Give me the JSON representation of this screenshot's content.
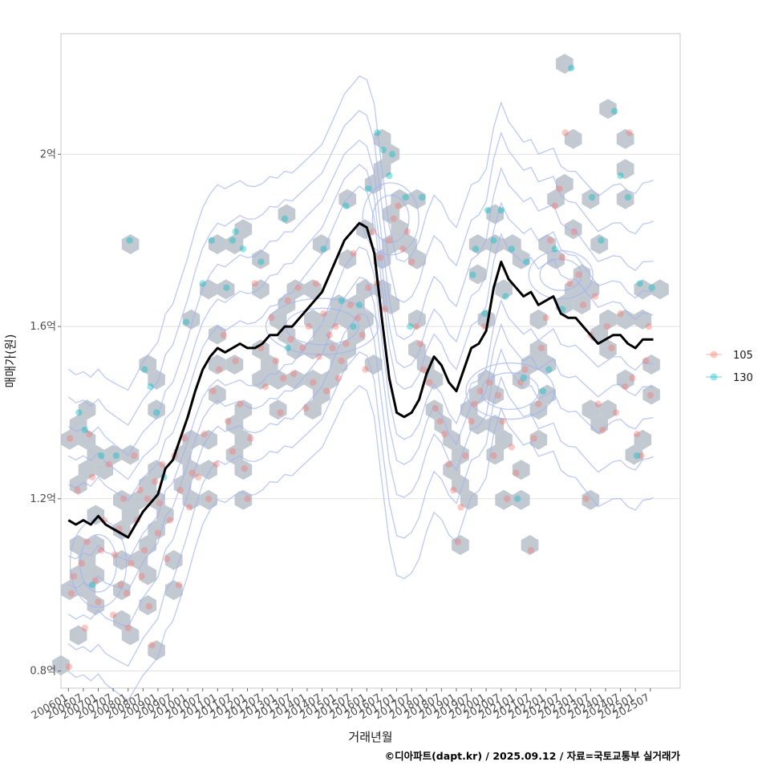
{
  "chart_data": {
    "type": "scatter",
    "title": "",
    "xlabel": "거래년월",
    "ylabel": "매매가(원)",
    "caption": "©디아파트(dapt.kr) / 2025.09.12 / 자료=국토교통부 실거래가",
    "xlim": [
      2005.75,
      2026.5
    ],
    "ylim": [
      0.76,
      2.28
    ],
    "y_ticks": [
      {
        "value": 0.8,
        "label": "0.8억"
      },
      {
        "value": 1.2,
        "label": "1.2억"
      },
      {
        "value": 1.6,
        "label": "1.6억"
      },
      {
        "value": 2.0,
        "label": "2억"
      }
    ],
    "x_tick_labels": [
      "200601",
      "200607",
      "200701",
      "200707",
      "200801",
      "200807",
      "200901",
      "200907",
      "201001",
      "201007",
      "201101",
      "201107",
      "201201",
      "201207",
      "201301",
      "201307",
      "201401",
      "201407",
      "201501",
      "201507",
      "201601",
      "201607",
      "201701",
      "201707",
      "201801",
      "201807",
      "201901",
      "201907",
      "202001",
      "202007",
      "202101",
      "202107",
      "202201",
      "202207",
      "202301",
      "202307",
      "202401",
      "202407",
      "202501",
      "202507"
    ],
    "x_tick_values": [
      2006.0,
      2006.5,
      2007.0,
      2007.5,
      2008.0,
      2008.5,
      2009.0,
      2009.5,
      2010.0,
      2010.5,
      2011.0,
      2011.5,
      2012.0,
      2012.5,
      2013.0,
      2013.5,
      2014.0,
      2014.5,
      2015.0,
      2015.5,
      2016.0,
      2016.5,
      2017.0,
      2017.5,
      2018.0,
      2018.5,
      2019.0,
      2019.5,
      2020.0,
      2020.5,
      2021.0,
      2021.5,
      2022.0,
      2022.5,
      2023.0,
      2023.5,
      2024.0,
      2024.5,
      2025.0,
      2025.5
    ],
    "legend": {
      "position": "right",
      "entries": [
        {
          "label": "105",
          "color": "#f8766d"
        },
        {
          "label": "130",
          "color": "#00bfc4"
        }
      ]
    },
    "colors": {
      "105": "#f8766d",
      "130": "#00bfc4",
      "trend": "#000000",
      "hex": "#b4bbc5",
      "contour": "#9fb2ee",
      "grid": "#e2e2e2",
      "panel_border": "#c8c8c8"
    },
    "series": [
      {
        "name": "105",
        "points": [
          [
            2006.02,
            0.81
          ],
          [
            2006.1,
            0.98
          ],
          [
            2006.18,
            1.02
          ],
          [
            2006.05,
            1.34
          ],
          [
            2006.3,
            1.22
          ],
          [
            2006.45,
            1.05
          ],
          [
            2006.55,
            0.9
          ],
          [
            2006.62,
            1.1
          ],
          [
            2006.7,
            1.35
          ],
          [
            2006.8,
            1.25
          ],
          [
            2006.9,
            1.01
          ],
          [
            2007.0,
            0.96
          ],
          [
            2007.1,
            1.08
          ],
          [
            2007.2,
            1.15
          ],
          [
            2007.35,
            1.28
          ],
          [
            2007.5,
            0.93
          ],
          [
            2007.55,
            1.07
          ],
          [
            2007.7,
            1.13
          ],
          [
            2007.75,
            1.0
          ],
          [
            2007.85,
            1.2
          ],
          [
            2007.95,
            0.98
          ],
          [
            2008.0,
            0.9
          ],
          [
            2008.1,
            1.05
          ],
          [
            2008.2,
            1.3
          ],
          [
            2008.3,
            1.15
          ],
          [
            2008.4,
            1.22
          ],
          [
            2008.45,
            1.02
          ],
          [
            2008.55,
            1.08
          ],
          [
            2008.65,
            1.2
          ],
          [
            2008.7,
            0.95
          ],
          [
            2008.8,
            0.86
          ],
          [
            2008.9,
            1.24
          ],
          [
            2009.0,
            1.12
          ],
          [
            2009.05,
            1.19
          ],
          [
            2009.15,
            1.28
          ],
          [
            2009.3,
            1.06
          ],
          [
            2009.4,
            1.15
          ],
          [
            2009.55,
            1.3
          ],
          [
            2009.7,
            1.0
          ],
          [
            2009.75,
            1.22
          ],
          [
            2009.9,
            1.34
          ],
          [
            2010.05,
            1.18
          ],
          [
            2010.15,
            1.26
          ],
          [
            2010.35,
            1.25
          ],
          [
            2010.55,
            1.35
          ],
          [
            2010.7,
            1.2
          ],
          [
            2010.85,
            1.45
          ],
          [
            2010.95,
            1.28
          ],
          [
            2011.05,
            1.5
          ],
          [
            2011.2,
            1.58
          ],
          [
            2011.35,
            1.38
          ],
          [
            2011.5,
            1.31
          ],
          [
            2011.6,
            1.52
          ],
          [
            2011.75,
            1.42
          ],
          [
            2011.9,
            1.27
          ],
          [
            2012.0,
            1.2
          ],
          [
            2012.1,
            1.34
          ],
          [
            2012.25,
            1.7
          ],
          [
            2012.45,
            1.55
          ],
          [
            2012.6,
            1.46
          ],
          [
            2012.8,
            1.62
          ],
          [
            2012.95,
            1.52
          ],
          [
            2013.1,
            1.4
          ],
          [
            2013.2,
            1.48
          ],
          [
            2013.35,
            1.66
          ],
          [
            2013.45,
            1.57
          ],
          [
            2013.55,
            1.49
          ],
          [
            2013.7,
            1.69
          ],
          [
            2013.85,
            1.55
          ],
          [
            2013.95,
            1.41
          ],
          [
            2014.05,
            1.6
          ],
          [
            2014.2,
            1.47
          ],
          [
            2014.3,
            1.7
          ],
          [
            2014.4,
            1.53
          ],
          [
            2014.55,
            1.63
          ],
          [
            2014.65,
            1.45
          ],
          [
            2014.75,
            1.58
          ],
          [
            2014.85,
            1.55
          ],
          [
            2014.95,
            1.6
          ],
          [
            2015.05,
            1.48
          ],
          [
            2015.15,
            1.52
          ],
          [
            2015.3,
            1.56
          ],
          [
            2015.45,
            1.65
          ],
          [
            2015.55,
            1.77
          ],
          [
            2015.7,
            1.62
          ],
          [
            2015.85,
            1.58
          ],
          [
            2015.95,
            1.5
          ],
          [
            2016.05,
            1.69
          ],
          [
            2016.2,
            1.82
          ],
          [
            2016.35,
            1.7
          ],
          [
            2016.45,
            1.76
          ],
          [
            2016.6,
            1.64
          ],
          [
            2016.75,
            1.8
          ],
          [
            2016.9,
            1.85
          ],
          [
            2017.05,
            1.88
          ],
          [
            2017.2,
            1.78
          ],
          [
            2017.35,
            1.82
          ],
          [
            2017.5,
            1.75
          ],
          [
            2017.65,
            1.6
          ],
          [
            2017.8,
            1.56
          ],
          [
            2017.9,
            1.5
          ],
          [
            2018.1,
            1.47
          ],
          [
            2018.3,
            1.41
          ],
          [
            2018.45,
            1.38
          ],
          [
            2018.6,
            1.35
          ],
          [
            2018.75,
            1.28
          ],
          [
            2018.9,
            1.22
          ],
          [
            2019.05,
            1.1
          ],
          [
            2019.15,
            1.18
          ],
          [
            2019.3,
            1.3
          ],
          [
            2019.5,
            1.38
          ],
          [
            2019.6,
            1.42
          ],
          [
            2019.8,
            1.45
          ],
          [
            2019.95,
            1.6
          ],
          [
            2020.1,
            1.47
          ],
          [
            2020.25,
            1.3
          ],
          [
            2020.4,
            1.44
          ],
          [
            2020.55,
            1.38
          ],
          [
            2020.7,
            1.2
          ],
          [
            2020.85,
            1.32
          ],
          [
            2021.0,
            1.26
          ],
          [
            2021.15,
            1.47
          ],
          [
            2021.3,
            1.5
          ],
          [
            2021.5,
            1.08
          ],
          [
            2021.6,
            1.34
          ],
          [
            2021.75,
            1.42
          ],
          [
            2021.85,
            1.55
          ],
          [
            2022.0,
            1.62
          ],
          [
            2022.15,
            1.8
          ],
          [
            2022.3,
            1.88
          ],
          [
            2022.45,
            1.92
          ],
          [
            2022.55,
            1.76
          ],
          [
            2022.65,
            2.05
          ],
          [
            2022.8,
            1.7
          ],
          [
            2022.95,
            1.82
          ],
          [
            2023.1,
            1.72
          ],
          [
            2023.25,
            1.65
          ],
          [
            2023.35,
            1.2
          ],
          [
            2023.5,
            1.58
          ],
          [
            2023.65,
            1.67
          ],
          [
            2023.75,
            1.42
          ],
          [
            2023.9,
            1.36
          ],
          [
            2024.05,
            1.6
          ],
          [
            2024.2,
            1.55
          ],
          [
            2024.35,
            1.4
          ],
          [
            2024.5,
            1.63
          ],
          [
            2024.65,
            1.46
          ],
          [
            2024.8,
            2.05
          ],
          [
            2024.9,
            1.48
          ],
          [
            2025.05,
            1.35
          ],
          [
            2025.2,
            1.3
          ],
          [
            2025.35,
            1.52
          ],
          [
            2025.45,
            1.6
          ],
          [
            2025.5,
            1.44
          ]
        ]
      },
      {
        "name": "130",
        "points": [
          [
            2006.35,
            1.4
          ],
          [
            2006.55,
            1.36
          ],
          [
            2006.8,
            1.0
          ],
          [
            2007.1,
            1.3
          ],
          [
            2007.6,
            1.3
          ],
          [
            2008.05,
            1.8
          ],
          [
            2008.55,
            1.5
          ],
          [
            2008.75,
            1.46
          ],
          [
            2008.95,
            1.4
          ],
          [
            2009.2,
            1.25
          ],
          [
            2009.95,
            1.61
          ],
          [
            2010.5,
            1.7
          ],
          [
            2010.8,
            1.8
          ],
          [
            2011.3,
            1.69
          ],
          [
            2011.5,
            1.8
          ],
          [
            2011.6,
            1.82
          ],
          [
            2011.85,
            1.78
          ],
          [
            2012.45,
            1.75
          ],
          [
            2013.25,
            1.85
          ],
          [
            2013.35,
            1.55
          ],
          [
            2014.55,
            1.78
          ],
          [
            2015.15,
            1.66
          ],
          [
            2015.3,
            1.88
          ],
          [
            2015.55,
            1.6
          ],
          [
            2015.75,
            1.65
          ],
          [
            2016.05,
            1.92
          ],
          [
            2016.35,
            2.05
          ],
          [
            2016.55,
            2.01
          ],
          [
            2016.75,
            1.95
          ],
          [
            2016.85,
            2.0
          ],
          [
            2017.3,
            1.9
          ],
          [
            2017.45,
            1.6
          ],
          [
            2017.85,
            1.9
          ],
          [
            2019.65,
            1.78
          ],
          [
            2019.95,
            1.63
          ],
          [
            2020.05,
            1.87
          ],
          [
            2020.25,
            1.8
          ],
          [
            2020.5,
            1.87
          ],
          [
            2020.65,
            1.67
          ],
          [
            2020.85,
            1.78
          ],
          [
            2021.35,
            1.75
          ],
          [
            2021.9,
            1.45
          ],
          [
            2022.1,
            1.5
          ],
          [
            2022.3,
            1.78
          ],
          [
            2022.55,
            1.64
          ],
          [
            2022.85,
            2.2
          ],
          [
            2023.55,
            1.9
          ],
          [
            2023.85,
            1.8
          ],
          [
            2024.3,
            2.1
          ],
          [
            2024.5,
            1.95
          ],
          [
            2024.75,
            1.9
          ],
          [
            2025.15,
            1.7
          ],
          [
            2025.55,
            1.69
          ],
          [
            2025.05,
            1.3
          ],
          [
            2021.25,
            1.48
          ],
          [
            2019.55,
            1.72
          ],
          [
            2021.05,
            1.2
          ]
        ]
      }
    ],
    "trend": {
      "name": "이동평균",
      "x": [
        2006.0,
        2006.25,
        2006.5,
        2006.75,
        2007.0,
        2007.25,
        2007.5,
        2007.75,
        2008.0,
        2008.25,
        2008.5,
        2008.75,
        2009.0,
        2009.25,
        2009.5,
        2009.75,
        2010.0,
        2010.25,
        2010.5,
        2010.75,
        2011.0,
        2011.25,
        2011.5,
        2011.75,
        2012.0,
        2012.25,
        2012.5,
        2012.75,
        2013.0,
        2013.25,
        2013.5,
        2013.75,
        2014.0,
        2014.25,
        2014.5,
        2014.75,
        2015.0,
        2015.25,
        2015.5,
        2015.75,
        2016.0,
        2016.25,
        2016.5,
        2016.75,
        2017.0,
        2017.25,
        2017.5,
        2017.75,
        2018.0,
        2018.25,
        2018.5,
        2018.75,
        2019.0,
        2019.25,
        2019.5,
        2019.75,
        2020.0,
        2020.25,
        2020.5,
        2020.75,
        2021.0,
        2021.25,
        2021.5,
        2021.75,
        2022.0,
        2022.25,
        2022.5,
        2022.75,
        2023.0,
        2023.25,
        2023.5,
        2023.75,
        2024.0,
        2024.25,
        2024.5,
        2024.75,
        2025.0,
        2025.25,
        2025.5,
        2025.6
      ],
      "y": [
        1.15,
        1.14,
        1.15,
        1.14,
        1.16,
        1.14,
        1.13,
        1.12,
        1.11,
        1.14,
        1.17,
        1.19,
        1.21,
        1.27,
        1.29,
        1.34,
        1.39,
        1.45,
        1.5,
        1.53,
        1.55,
        1.54,
        1.55,
        1.56,
        1.55,
        1.55,
        1.56,
        1.58,
        1.58,
        1.6,
        1.6,
        1.62,
        1.64,
        1.66,
        1.68,
        1.72,
        1.76,
        1.8,
        1.82,
        1.84,
        1.83,
        1.77,
        1.62,
        1.48,
        1.4,
        1.39,
        1.4,
        1.43,
        1.49,
        1.53,
        1.51,
        1.47,
        1.45,
        1.5,
        1.55,
        1.56,
        1.59,
        1.69,
        1.75,
        1.71,
        1.69,
        1.67,
        1.68,
        1.65,
        1.66,
        1.67,
        1.63,
        1.62,
        1.62,
        1.6,
        1.58,
        1.56,
        1.57,
        1.58,
        1.58,
        1.56,
        1.55,
        1.57,
        1.57,
        1.57
      ]
    }
  }
}
